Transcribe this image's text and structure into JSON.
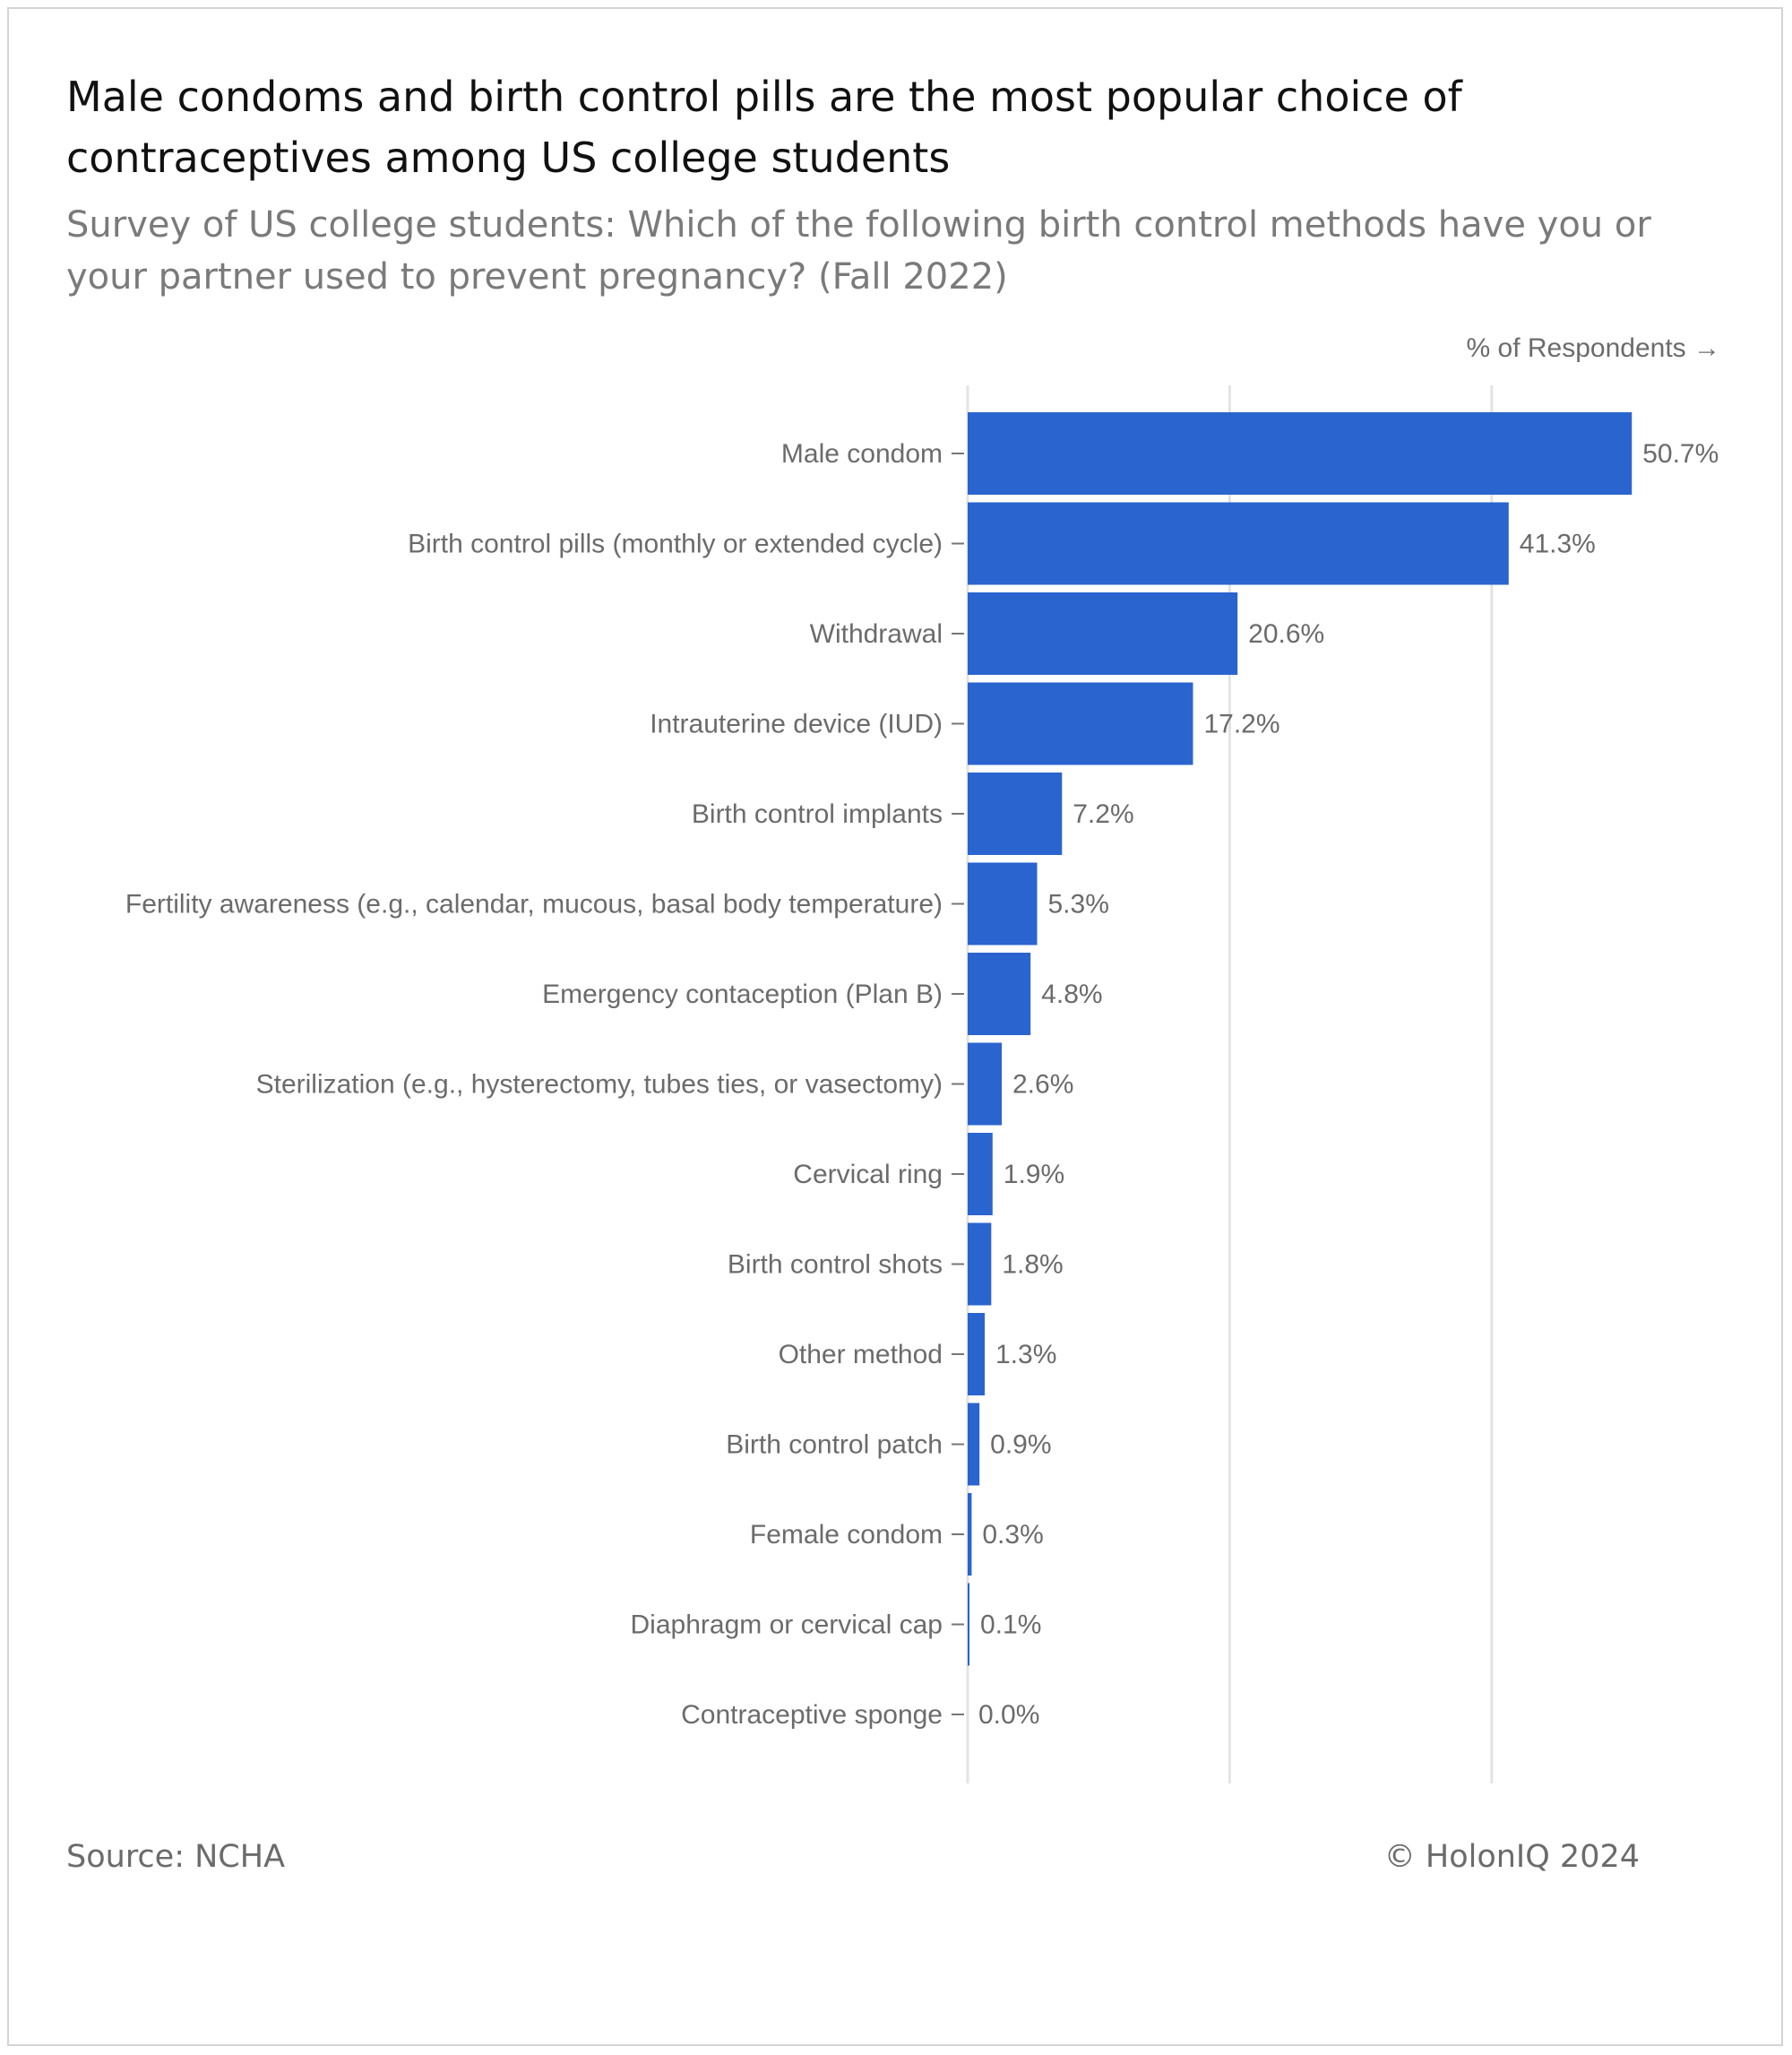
{
  "header": {
    "title": "Male condoms and birth control pills are the most popular choice of contraceptives among US college students",
    "subtitle": "Survey of US college students: Which of the following birth control methods have you or your partner used to prevent pregnancy? (Fall 2022)"
  },
  "footer": {
    "source": "Source: NCHA",
    "credit": "© HolonIQ 2024"
  },
  "chart_data": {
    "type": "bar",
    "orientation": "horizontal",
    "xlabel": "% of Respondents →",
    "ylabel": "",
    "xlim": [
      0,
      60
    ],
    "grid": true,
    "value_suffix": "%",
    "color": "#2a64cf",
    "categories": [
      "Male condom",
      "Birth control pills (monthly or extended cycle)",
      "Withdrawal",
      "Intrauterine device (IUD)",
      "Birth control implants",
      "Fertility awareness (e.g., calendar, mucous, basal body temperature)",
      "Emergency contaception (Plan B)",
      "Sterilization (e.g., hysterectomy, tubes ties, or vasectomy)",
      "Cervical ring",
      "Birth control shots",
      "Other method",
      "Birth control patch",
      "Female condom",
      "Diaphragm or cervical cap",
      "Contraceptive sponge"
    ],
    "values": [
      50.7,
      41.3,
      20.6,
      17.2,
      7.2,
      5.3,
      4.8,
      2.6,
      1.9,
      1.8,
      1.3,
      0.9,
      0.3,
      0.1,
      0.0
    ],
    "labels": [
      "50.7%",
      "41.3%",
      "20.6%",
      "17.2%",
      "7.2%",
      "5.3%",
      "4.8%",
      "2.6%",
      "1.9%",
      "1.8%",
      "1.3%",
      "0.9%",
      "0.3%",
      "0.1%",
      "0.0%"
    ]
  }
}
